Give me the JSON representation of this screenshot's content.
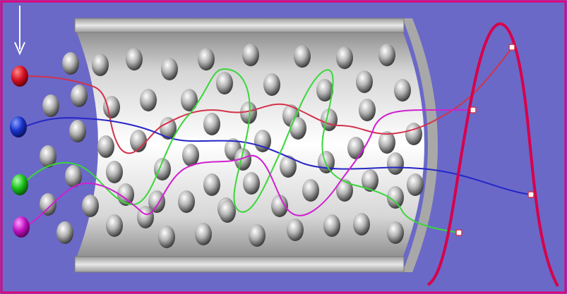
{
  "colors": {
    "background": "#6a69c8",
    "frame": "#e0007a",
    "column_light": "#f4f4f4",
    "column_dark": "#9a9a9a",
    "bead_light": "#f0f0f0",
    "bead_dark": "#3a3a3a",
    "red": "#d4324a",
    "blue": "#2626c8",
    "green": "#3ad63a",
    "magenta": "#d020d0",
    "peak": "#d8004a"
  },
  "analytes": [
    {
      "name": "red",
      "color": "#d4324a"
    },
    {
      "name": "blue",
      "color": "#2626c8"
    },
    {
      "name": "green",
      "color": "#3ad63a"
    },
    {
      "name": "magenta",
      "color": "#d020d0"
    }
  ],
  "icons": {
    "injection_arrow": "down-arrow-icon",
    "particle": "stationary-phase-bead"
  }
}
